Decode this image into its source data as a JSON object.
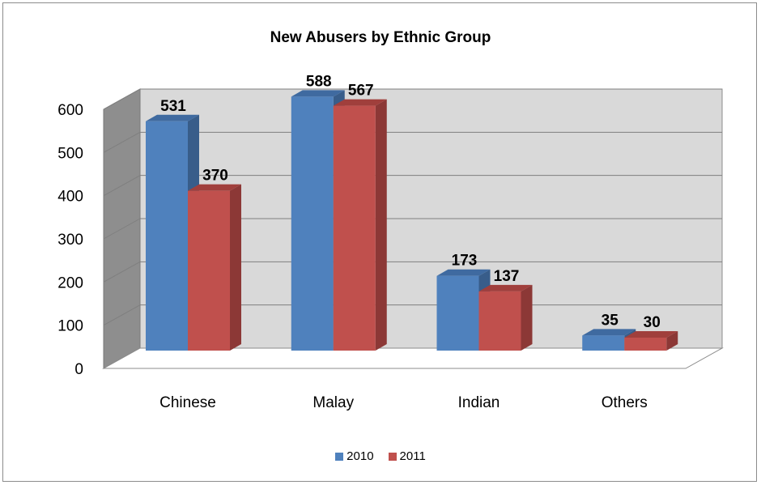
{
  "chart_data": {
    "type": "bar",
    "title": "New Abusers by Ethnic Group",
    "xlabel": "",
    "ylabel": "",
    "categories": [
      "Chinese",
      "Malay",
      "Indian",
      "Others"
    ],
    "series": [
      {
        "name": "2010",
        "values": [
          531,
          588,
          173,
          35
        ],
        "color": "#4f81bd",
        "side_color": "#385d8a",
        "top_color": "#3f6aa0"
      },
      {
        "name": "2011",
        "values": [
          370,
          567,
          137,
          30
        ],
        "color": "#c0504d",
        "side_color": "#8c3836",
        "top_color": "#a03f3c"
      }
    ],
    "ylim": [
      0,
      600
    ],
    "yticks": [
      "0",
      "100",
      "200",
      "300",
      "400",
      "500",
      "600"
    ],
    "grid": true,
    "legend_position": "bottom",
    "style": "3d-clustered-column",
    "wall_color": "#d9d9d9"
  }
}
